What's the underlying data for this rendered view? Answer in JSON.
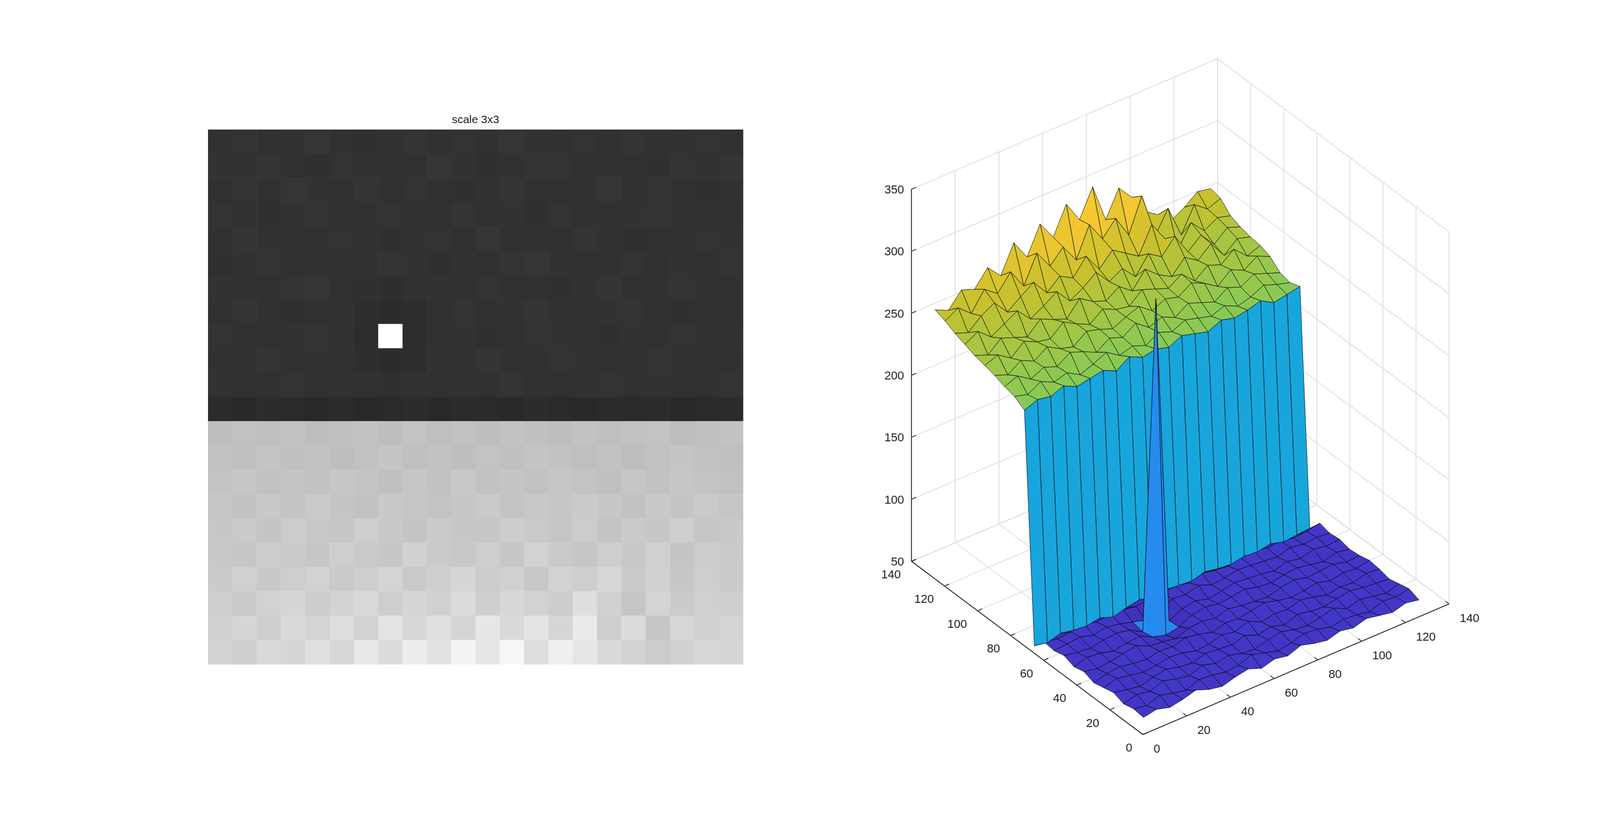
{
  "chart_data": [
    {
      "type": "image",
      "title": "scale 3x3",
      "tick_labels": false,
      "cells": [
        [
          62,
          64,
          61,
          63,
          66,
          62,
          60,
          63,
          65,
          61,
          64,
          62,
          66,
          63,
          61,
          64,
          62,
          65,
          63,
          61,
          64,
          62
        ],
        [
          63,
          61,
          65,
          62,
          60,
          64,
          63,
          61,
          62,
          66,
          63,
          60,
          62,
          65,
          64,
          61,
          63,
          62,
          60,
          64,
          63,
          65
        ],
        [
          61,
          64,
          62,
          66,
          63,
          61,
          65,
          62,
          64,
          61,
          60,
          63,
          65,
          62,
          61,
          63,
          66,
          61,
          64,
          62,
          60,
          63
        ],
        [
          64,
          62,
          60,
          63,
          65,
          62,
          61,
          64,
          63,
          62,
          65,
          61,
          63,
          60,
          64,
          62,
          61,
          63,
          65,
          63,
          62,
          61
        ],
        [
          62,
          65,
          63,
          61,
          62,
          64,
          63,
          60,
          61,
          64,
          62,
          66,
          61,
          63,
          62,
          65,
          63,
          60,
          62,
          61,
          64,
          63
        ],
        [
          60,
          63,
          64,
          62,
          61,
          63,
          62,
          65,
          63,
          60,
          63,
          62,
          64,
          66,
          63,
          61,
          62,
          64,
          61,
          63,
          62,
          64
        ],
        [
          63,
          61,
          62,
          64,
          66,
          61,
          60,
          58,
          62,
          63,
          61,
          64,
          62,
          61,
          60,
          63,
          65,
          62,
          63,
          64,
          61,
          62
        ],
        [
          61,
          64,
          63,
          60,
          62,
          63,
          58,
          55,
          57,
          62,
          64,
          62,
          63,
          65,
          62,
          61,
          63,
          64,
          62,
          60,
          63,
          61
        ],
        [
          64,
          62,
          61,
          63,
          64,
          62,
          56,
          320,
          56,
          61,
          63,
          60,
          62,
          64,
          63,
          62,
          60,
          63,
          61,
          64,
          62,
          63
        ],
        [
          62,
          63,
          64,
          61,
          63,
          61,
          58,
          55,
          57,
          63,
          62,
          65,
          61,
          62,
          64,
          63,
          62,
          61,
          64,
          62,
          63,
          62
        ],
        [
          63,
          61,
          62,
          64,
          61,
          63,
          62,
          60,
          61,
          62,
          63,
          61,
          64,
          62,
          61,
          63,
          64,
          62,
          63,
          61,
          62,
          64
        ],
        [
          54,
          52,
          55,
          53,
          52,
          54,
          50,
          53,
          55,
          52,
          54,
          53,
          52,
          55,
          53,
          52,
          54,
          53,
          55,
          52,
          53,
          54
        ],
        [
          238,
          242,
          240,
          244,
          239,
          241,
          243,
          238,
          245,
          240,
          242,
          239,
          244,
          241,
          238,
          243,
          240,
          242,
          245,
          239,
          241,
          243
        ],
        [
          243,
          240,
          246,
          241,
          244,
          238,
          242,
          247,
          240,
          243,
          239,
          245,
          241,
          246,
          243,
          240,
          244,
          239,
          242,
          247,
          243,
          240
        ],
        [
          245,
          249,
          242,
          247,
          243,
          250,
          246,
          241,
          248,
          244,
          251,
          243,
          247,
          242,
          249,
          245,
          241,
          248,
          244,
          250,
          246,
          242
        ],
        [
          248,
          244,
          251,
          246,
          253,
          247,
          244,
          252,
          249,
          245,
          250,
          254,
          246,
          251,
          248,
          255,
          250,
          243,
          252,
          247,
          254,
          249
        ],
        [
          250,
          254,
          247,
          256,
          251,
          249,
          258,
          252,
          247,
          255,
          250,
          248,
          257,
          253,
          249,
          256,
          246,
          254,
          250,
          258,
          248,
          252
        ],
        [
          252,
          248,
          257,
          253,
          249,
          259,
          254,
          250,
          262,
          255,
          251,
          258,
          250,
          263,
          254,
          248,
          259,
          252,
          261,
          247,
          256,
          253
        ],
        [
          255,
          261,
          252,
          258,
          264,
          253,
          259,
          266,
          254,
          260,
          268,
          256,
          262,
          251,
          265,
          258,
          270,
          253,
          262,
          250,
          259,
          255
        ],
        [
          258,
          254,
          263,
          269,
          257,
          265,
          272,
          259,
          268,
          262,
          275,
          260,
          271,
          264,
          257,
          278,
          262,
          249,
          266,
          255,
          261,
          258
        ],
        [
          262,
          268,
          259,
          274,
          266,
          279,
          263,
          285,
          270,
          281,
          266,
          290,
          274,
          286,
          268,
          295,
          258,
          276,
          250,
          270,
          262,
          266
        ],
        [
          265,
          260,
          272,
          268,
          281,
          270,
          292,
          276,
          298,
          283,
          305,
          288,
          310,
          279,
          300,
          288,
          272,
          265,
          256,
          262,
          270,
          268
        ]
      ]
    },
    {
      "type": "surface",
      "grid": true,
      "xlim": [
        0,
        140
      ],
      "ylim": [
        0,
        140
      ],
      "zlim": [
        50,
        350
      ],
      "xticks": [
        0,
        20,
        40,
        60,
        80,
        100,
        120,
        140
      ],
      "yticks": [
        0,
        20,
        40,
        60,
        80,
        100,
        120,
        140
      ],
      "zticks": [
        50,
        100,
        150,
        200,
        250,
        300,
        350
      ],
      "x": [
        1,
        7,
        13,
        19,
        25,
        31,
        37,
        43,
        49,
        55,
        61,
        67,
        73,
        79,
        85,
        91,
        97,
        103,
        109,
        115,
        121,
        127
      ],
      "y": [
        1,
        7,
        13,
        19,
        25,
        31,
        37,
        43,
        49,
        55,
        61,
        67,
        73,
        79,
        85,
        91,
        97,
        103,
        109,
        115,
        121,
        127
      ],
      "z": [
        [
          62,
          64,
          61,
          63,
          66,
          62,
          60,
          63,
          65,
          61,
          64,
          62,
          66,
          63,
          61,
          64,
          62,
          65,
          63,
          61,
          64,
          62
        ],
        [
          63,
          61,
          65,
          62,
          60,
          64,
          63,
          61,
          62,
          66,
          63,
          60,
          62,
          65,
          64,
          61,
          63,
          62,
          60,
          64,
          63,
          65
        ],
        [
          61,
          64,
          62,
          66,
          63,
          61,
          65,
          62,
          64,
          61,
          60,
          63,
          65,
          62,
          61,
          63,
          66,
          61,
          64,
          62,
          60,
          63
        ],
        [
          64,
          62,
          60,
          63,
          65,
          62,
          61,
          64,
          63,
          62,
          65,
          61,
          63,
          60,
          64,
          62,
          61,
          63,
          65,
          63,
          62,
          61
        ],
        [
          62,
          65,
          63,
          61,
          62,
          64,
          63,
          60,
          61,
          64,
          62,
          66,
          61,
          63,
          62,
          65,
          63,
          60,
          62,
          61,
          64,
          63
        ],
        [
          60,
          63,
          64,
          62,
          61,
          63,
          62,
          65,
          63,
          60,
          63,
          62,
          64,
          66,
          63,
          61,
          62,
          64,
          61,
          63,
          62,
          64
        ],
        [
          63,
          61,
          62,
          64,
          66,
          61,
          60,
          58,
          62,
          63,
          61,
          64,
          62,
          61,
          60,
          63,
          65,
          62,
          63,
          64,
          61,
          62
        ],
        [
          61,
          64,
          63,
          60,
          62,
          63,
          58,
          55,
          57,
          62,
          64,
          62,
          63,
          65,
          62,
          61,
          63,
          64,
          62,
          60,
          63,
          61
        ],
        [
          64,
          62,
          61,
          63,
          64,
          62,
          56,
          320,
          56,
          61,
          63,
          60,
          62,
          64,
          63,
          62,
          60,
          63,
          61,
          64,
          62,
          63
        ],
        [
          62,
          63,
          64,
          61,
          63,
          61,
          58,
          55,
          57,
          63,
          62,
          65,
          61,
          62,
          64,
          63,
          62,
          61,
          64,
          62,
          63,
          62
        ],
        [
          63,
          61,
          62,
          64,
          61,
          63,
          62,
          60,
          61,
          62,
          63,
          61,
          64,
          62,
          61,
          63,
          64,
          62,
          63,
          61,
          62,
          64
        ],
        [
          54,
          52,
          55,
          53,
          52,
          54,
          50,
          53,
          55,
          52,
          54,
          53,
          52,
          55,
          53,
          52,
          54,
          53,
          55,
          52,
          53,
          54
        ],
        [
          238,
          242,
          240,
          244,
          239,
          241,
          243,
          238,
          245,
          240,
          242,
          239,
          244,
          241,
          238,
          243,
          240,
          242,
          245,
          239,
          241,
          243
        ],
        [
          243,
          240,
          246,
          241,
          244,
          238,
          242,
          247,
          240,
          243,
          239,
          245,
          241,
          246,
          243,
          240,
          244,
          239,
          242,
          247,
          243,
          240
        ],
        [
          245,
          249,
          242,
          247,
          243,
          250,
          246,
          241,
          248,
          244,
          251,
          243,
          247,
          242,
          249,
          245,
          241,
          248,
          244,
          250,
          246,
          242
        ],
        [
          248,
          244,
          251,
          246,
          253,
          247,
          244,
          252,
          249,
          245,
          250,
          254,
          246,
          251,
          248,
          255,
          250,
          243,
          252,
          247,
          254,
          249
        ],
        [
          250,
          254,
          247,
          256,
          251,
          249,
          258,
          252,
          247,
          255,
          250,
          248,
          257,
          253,
          249,
          256,
          246,
          254,
          250,
          258,
          248,
          252
        ],
        [
          252,
          248,
          257,
          253,
          249,
          259,
          254,
          250,
          262,
          255,
          251,
          258,
          250,
          263,
          254,
          248,
          259,
          252,
          261,
          247,
          256,
          253
        ],
        [
          255,
          261,
          252,
          258,
          264,
          253,
          259,
          266,
          254,
          260,
          268,
          256,
          262,
          251,
          265,
          258,
          270,
          253,
          262,
          250,
          259,
          255
        ],
        [
          258,
          254,
          263,
          269,
          257,
          265,
          272,
          259,
          268,
          262,
          275,
          260,
          271,
          264,
          257,
          278,
          262,
          249,
          266,
          255,
          261,
          258
        ],
        [
          262,
          268,
          259,
          274,
          266,
          279,
          263,
          285,
          270,
          281,
          266,
          290,
          274,
          286,
          268,
          295,
          258,
          276,
          250,
          270,
          262,
          266
        ],
        [
          265,
          260,
          272,
          268,
          281,
          270,
          292,
          276,
          298,
          283,
          305,
          288,
          310,
          279,
          300,
          288,
          272,
          265,
          256,
          262,
          270,
          268
        ]
      ]
    }
  ]
}
